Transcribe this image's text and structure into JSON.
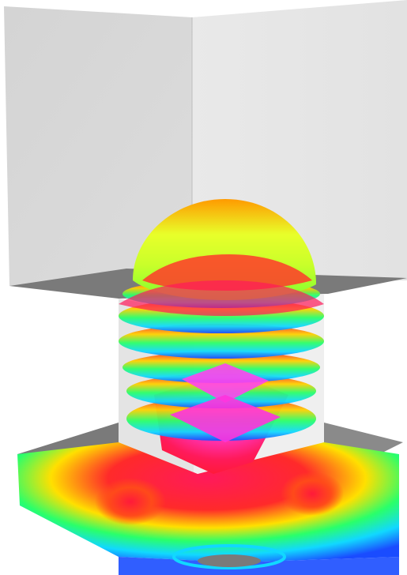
{
  "scene": {
    "description_free": true,
    "colors": {
      "background": "#ffffff",
      "wall_left": "#d9d9d9",
      "wall_right": "#e6e6e6",
      "ledge_dark": "#7a7a7a",
      "column_face": "#ececec",
      "red": "#ff1a3a",
      "magenta": "#ff33dd",
      "yellow": "#e8ff2a",
      "green": "#2aff6a",
      "cyan": "#11d8ff",
      "blue": "#1a4cff",
      "orange": "#ff9a00"
    }
  }
}
